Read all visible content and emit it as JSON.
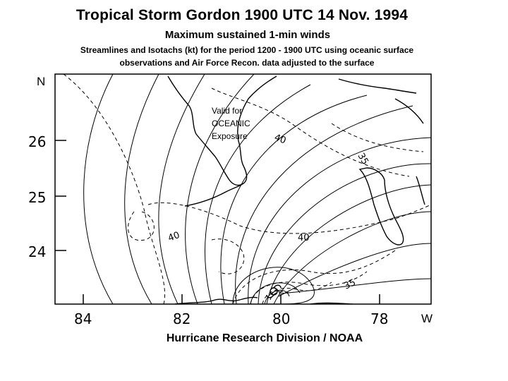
{
  "title": "Tropical Storm Gordon 1900 UTC 14 Nov. 1994",
  "subtitle": "Maximum sustained 1-min winds",
  "description": {
    "line1": "Streamlines and Isotachs (kt) for the period 1200 - 1900 UTC using oceanic surface",
    "line2": "observations and Air Force Recon. data adjusted to the surface"
  },
  "valid_note": {
    "line1": "Valid for",
    "line2": "OCEANIC",
    "line3": "Exposure"
  },
  "axes": {
    "north_label": "N",
    "west_label": "W",
    "latitudes": [
      "26",
      "25",
      "24"
    ],
    "longitudes": [
      "84",
      "82",
      "80",
      "78"
    ]
  },
  "isotach_labels": [
    "40",
    "40",
    "40",
    "35",
    "35"
  ],
  "footer": "Hurricane Research Division / NOAA"
}
